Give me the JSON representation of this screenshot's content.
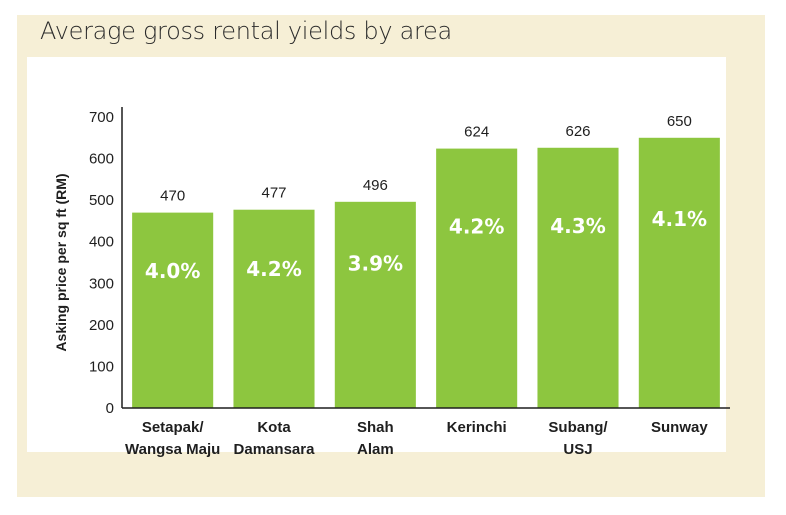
{
  "title": "Average gross rental yields by area",
  "chart_data": {
    "type": "bar",
    "title": "Average gross rental yields by area",
    "ylabel": "Asking price per sq ft (RM)",
    "xlabel": "",
    "ylim": [
      0,
      700
    ],
    "yticks": [
      0,
      100,
      200,
      300,
      400,
      500,
      600,
      700
    ],
    "categories": [
      [
        "Setapak/",
        "Wangsa Maju"
      ],
      [
        "Kota",
        "Damansara"
      ],
      [
        "Shah",
        "Alam"
      ],
      [
        "Kerinchi"
      ],
      [
        "Subang/",
        "USJ"
      ],
      [
        "Sunway"
      ]
    ],
    "values": [
      470,
      477,
      496,
      624,
      626,
      650
    ],
    "yields": [
      "4.0%",
      "4.2%",
      "3.9%",
      "4.2%",
      "4.3%",
      "4.1%"
    ],
    "bar_color": "#8dc63f",
    "grid": false,
    "legend": "none"
  }
}
